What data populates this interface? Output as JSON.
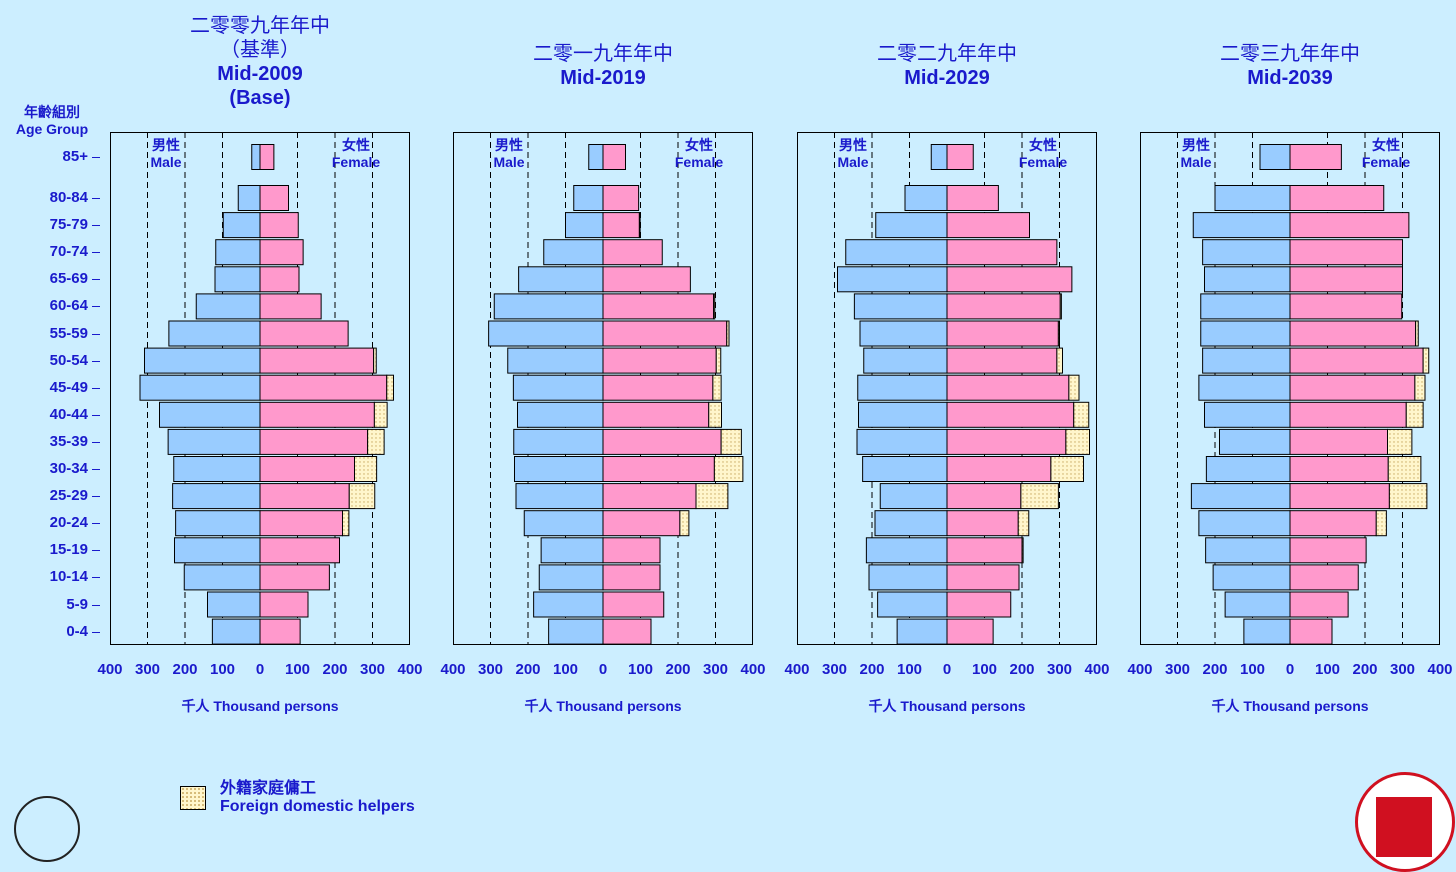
{
  "age_axis": {
    "title_zh": "年齡組別",
    "title_en": "Age Group",
    "groups": [
      "85+",
      "80-84",
      "75-79",
      "70-74",
      "65-69",
      "60-64",
      "55-59",
      "50-54",
      "45-49",
      "40-44",
      "35-39",
      "30-34",
      "25-29",
      "20-24",
      "15-19",
      "10-14",
      "5-9",
      "0-4"
    ]
  },
  "sex_labels": {
    "male_zh": "男性",
    "male_en": "Male",
    "female_zh": "女性",
    "female_en": "Female"
  },
  "x_axis": {
    "ticks": [
      "400",
      "300",
      "200",
      "100",
      "0",
      "100",
      "200",
      "300",
      "400"
    ],
    "title": "千人 Thousand persons"
  },
  "legend": {
    "zh": "外籍家庭傭工",
    "en": "Foreign domestic helpers"
  },
  "colors": {
    "background": "#cceeff",
    "male": "#99ccff",
    "female": "#ff99cc",
    "fdh": "#fff6cc",
    "text": "#1a1acc"
  },
  "chart_data": [
    {
      "type": "bar",
      "title_zh_lines": [
        "二零零九年年中",
        "（基準）"
      ],
      "title_en_lines": [
        "Mid-2009",
        "(Base)"
      ],
      "categories": [
        "85+",
        "80-84",
        "75-79",
        "70-74",
        "65-69",
        "60-64",
        "55-59",
        "50-54",
        "45-49",
        "40-44",
        "35-39",
        "30-34",
        "25-29",
        "20-24",
        "15-19",
        "10-14",
        "5-9",
        "0-4"
      ],
      "xlim": [
        -400,
        400
      ],
      "series": [
        {
          "name": "Male",
          "values": [
            22,
            58,
            98,
            118,
            120,
            170,
            243,
            308,
            320,
            268,
            245,
            230,
            233,
            225,
            228,
            202,
            140,
            127
          ]
        },
        {
          "name": "Female",
          "values": [
            37,
            76,
            102,
            115,
            104,
            163,
            235,
            303,
            338,
            305,
            287,
            252,
            238,
            220,
            212,
            185,
            128,
            107
          ]
        },
        {
          "name": "Foreign domestic helpers",
          "values": [
            0,
            0,
            0,
            0,
            0,
            0,
            0,
            7,
            18,
            34,
            44,
            59,
            68,
            17,
            0,
            0,
            0,
            0
          ]
        }
      ]
    },
    {
      "type": "bar",
      "title_zh_lines": [
        "二零一九年年中"
      ],
      "title_en_lines": [
        "Mid-2019"
      ],
      "categories": [
        "85+",
        "80-84",
        "75-79",
        "70-74",
        "65-69",
        "60-64",
        "55-59",
        "50-54",
        "45-49",
        "40-44",
        "35-39",
        "30-34",
        "25-29",
        "20-24",
        "15-19",
        "10-14",
        "5-9",
        "0-4"
      ],
      "xlim": [
        -400,
        400
      ],
      "series": [
        {
          "name": "Male",
          "values": [
            38,
            78,
            100,
            158,
            225,
            290,
            305,
            254,
            239,
            228,
            238,
            236,
            232,
            210,
            165,
            170,
            185,
            145
          ]
        },
        {
          "name": "Female",
          "values": [
            60,
            95,
            97,
            158,
            233,
            295,
            330,
            302,
            293,
            282,
            315,
            297,
            248,
            205,
            152,
            152,
            162,
            128
          ]
        },
        {
          "name": "Foreign domestic helpers",
          "values": [
            0,
            0,
            2,
            0,
            0,
            3,
            6,
            12,
            22,
            34,
            54,
            76,
            85,
            24,
            0,
            0,
            0,
            0
          ]
        }
      ]
    },
    {
      "type": "bar",
      "title_zh_lines": [
        "二零二九年年中"
      ],
      "title_en_lines": [
        "Mid-2029"
      ],
      "categories": [
        "85+",
        "80-84",
        "75-79",
        "70-74",
        "65-69",
        "60-64",
        "55-59",
        "50-54",
        "45-49",
        "40-44",
        "35-39",
        "30-34",
        "25-29",
        "20-24",
        "15-19",
        "10-14",
        "5-9",
        "0-4"
      ],
      "xlim": [
        -400,
        400
      ],
      "series": [
        {
          "name": "Male",
          "values": [
            42,
            112,
            190,
            270,
            292,
            247,
            232,
            222,
            238,
            236,
            240,
            225,
            178,
            192,
            215,
            208,
            185,
            133
          ]
        },
        {
          "name": "Female",
          "values": [
            70,
            137,
            220,
            293,
            333,
            302,
            297,
            293,
            325,
            338,
            317,
            277,
            197,
            190,
            200,
            192,
            170,
            123
          ]
        },
        {
          "name": "Foreign domestic helpers",
          "values": [
            0,
            0,
            0,
            0,
            0,
            3,
            3,
            15,
            27,
            40,
            63,
            87,
            100,
            28,
            3,
            0,
            0,
            0
          ]
        }
      ]
    },
    {
      "type": "bar",
      "title_zh_lines": [
        "二零三九年年中"
      ],
      "title_en_lines": [
        "Mid-2039"
      ],
      "categories": [
        "85+",
        "80-84",
        "75-79",
        "70-74",
        "65-69",
        "60-64",
        "55-59",
        "50-54",
        "45-49",
        "40-44",
        "35-39",
        "30-34",
        "25-29",
        "20-24",
        "15-19",
        "10-14",
        "5-9",
        "0-4"
      ],
      "xlim": [
        -400,
        400
      ],
      "series": [
        {
          "name": "Male",
          "values": [
            80,
            200,
            258,
            233,
            228,
            238,
            238,
            233,
            243,
            228,
            188,
            223,
            263,
            243,
            225,
            205,
            173,
            123
          ]
        },
        {
          "name": "Female",
          "values": [
            137,
            250,
            317,
            300,
            300,
            298,
            335,
            355,
            333,
            310,
            260,
            262,
            265,
            230,
            203,
            182,
            155,
            112
          ]
        },
        {
          "name": "Foreign domestic helpers",
          "values": [
            0,
            0,
            0,
            0,
            0,
            0,
            7,
            15,
            27,
            45,
            65,
            87,
            100,
            27,
            0,
            0,
            0,
            0
          ]
        }
      ]
    }
  ]
}
